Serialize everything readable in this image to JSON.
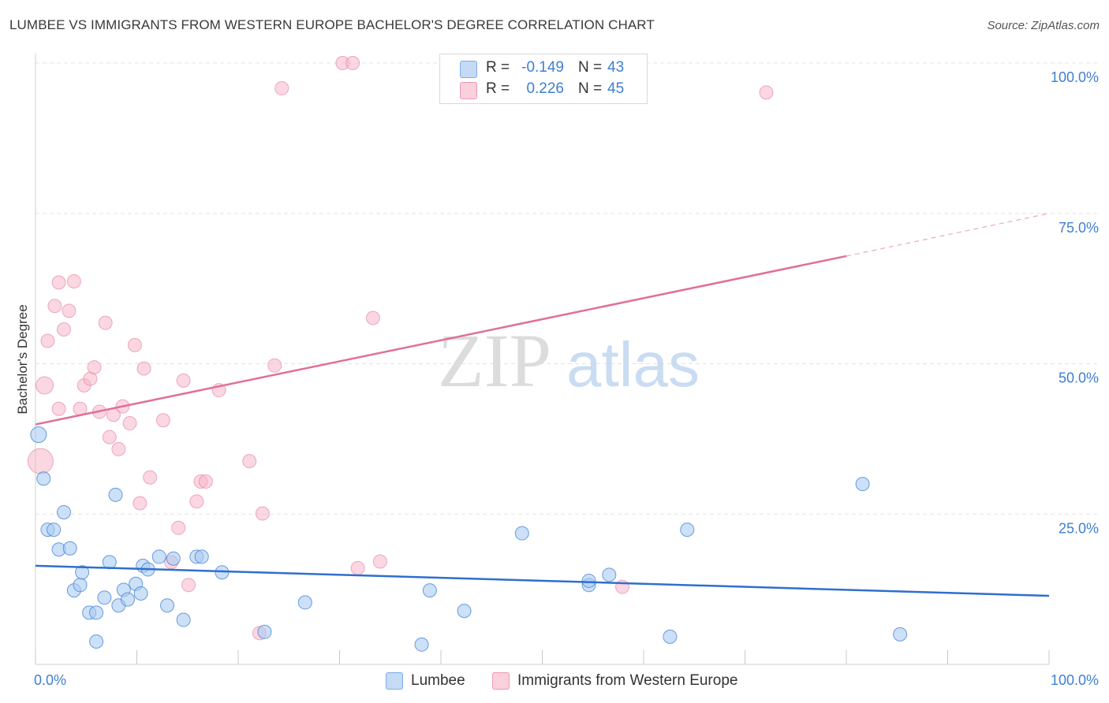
{
  "title": "LUMBEE VS IMMIGRANTS FROM WESTERN EUROPE BACHELOR'S DEGREE CORRELATION CHART",
  "source": "Source: ZipAtlas.com",
  "watermark": {
    "zip": "ZIP",
    "atlas": "atlas"
  },
  "colors": {
    "blue": "#3f7fd2",
    "blue_fill": "#aaccf3",
    "blue_line": "#2f6fcd",
    "pink": "#e06f96",
    "pink_fill": "#f5b6c9",
    "grid": "#e3e3e3"
  },
  "legend": {
    "rows": [
      {
        "r_label": "R =",
        "r_value": "-0.149",
        "n_label": "N =",
        "n_value": "43"
      },
      {
        "r_label": "R =",
        "r_value": "0.226",
        "n_label": "N =",
        "n_value": "45"
      }
    ]
  },
  "bottom_legend": {
    "series1": "Lumbee",
    "series2": "Immigrants from Western Europe"
  },
  "chart_data": {
    "type": "scatter",
    "title": "LUMBEE VS IMMIGRANTS FROM WESTERN EUROPE BACHELOR'S DEGREE CORRELATION CHART",
    "xlabel": "",
    "ylabel": "Bachelor's Degree",
    "xlim": [
      0,
      100
    ],
    "ylim": [
      0,
      100
    ],
    "x_tick_labels": [
      "0.0%",
      "100.0%"
    ],
    "y_tick_labels": [
      "100.0%",
      "75.0%",
      "50.0%",
      "25.0%"
    ],
    "y_ticks": [
      100,
      75,
      50,
      25
    ],
    "grid": true,
    "legend_position": "top-center",
    "series": [
      {
        "name": "Lumbee",
        "color": "#3f7fd2",
        "trend": {
          "x": [
            0,
            100
          ],
          "y": [
            16.4,
            11.4
          ]
        },
        "points": [
          [
            0.3,
            38.2
          ],
          [
            0.8,
            30.9
          ],
          [
            1.2,
            22.4
          ],
          [
            1.8,
            22.4
          ],
          [
            2.3,
            19.1
          ],
          [
            2.8,
            25.3
          ],
          [
            3.4,
            19.3
          ],
          [
            3.8,
            12.3
          ],
          [
            4.4,
            13.2
          ],
          [
            4.6,
            15.3
          ],
          [
            5.3,
            8.6
          ],
          [
            6.0,
            8.6
          ],
          [
            6.0,
            3.8
          ],
          [
            6.8,
            11.1
          ],
          [
            7.3,
            17.0
          ],
          [
            7.9,
            28.2
          ],
          [
            8.2,
            9.8
          ],
          [
            8.7,
            12.4
          ],
          [
            9.1,
            10.8
          ],
          [
            9.9,
            13.4
          ],
          [
            10.4,
            11.8
          ],
          [
            10.6,
            16.4
          ],
          [
            11.1,
            15.8
          ],
          [
            12.2,
            17.9
          ],
          [
            13.0,
            9.8
          ],
          [
            13.6,
            17.6
          ],
          [
            14.6,
            7.4
          ],
          [
            15.9,
            17.9
          ],
          [
            16.4,
            17.9
          ],
          [
            18.4,
            15.3
          ],
          [
            22.6,
            5.4
          ],
          [
            26.6,
            10.3
          ],
          [
            38.1,
            3.3
          ],
          [
            38.9,
            12.3
          ],
          [
            42.3,
            8.9
          ],
          [
            48.0,
            21.8
          ],
          [
            54.6,
            13.2
          ],
          [
            54.6,
            13.9
          ],
          [
            56.6,
            14.9
          ],
          [
            62.6,
            4.6
          ],
          [
            64.3,
            22.4
          ],
          [
            81.6,
            30.0
          ],
          [
            85.3,
            5.0
          ]
        ]
      },
      {
        "name": "Immigrants from Western Europe",
        "color": "#e06f96",
        "trend": {
          "x": [
            0,
            80
          ],
          "y": [
            39.9,
            67.9
          ]
        },
        "trend_dashed": {
          "x": [
            80,
            100
          ],
          "y": [
            67.9,
            75.0
          ]
        },
        "points": [
          [
            0.5,
            33.8
          ],
          [
            0.9,
            46.4
          ],
          [
            1.2,
            53.8
          ],
          [
            1.9,
            59.6
          ],
          [
            2.3,
            63.5
          ],
          [
            2.3,
            42.5
          ],
          [
            2.8,
            55.7
          ],
          [
            3.3,
            58.8
          ],
          [
            3.8,
            63.7
          ],
          [
            4.4,
            42.5
          ],
          [
            4.8,
            46.4
          ],
          [
            5.4,
            47.5
          ],
          [
            5.8,
            49.4
          ],
          [
            6.3,
            42.0
          ],
          [
            6.9,
            56.8
          ],
          [
            7.3,
            37.8
          ],
          [
            7.7,
            41.5
          ],
          [
            8.2,
            35.8
          ],
          [
            8.6,
            42.9
          ],
          [
            9.3,
            40.1
          ],
          [
            9.8,
            53.1
          ],
          [
            10.3,
            26.8
          ],
          [
            10.7,
            49.2
          ],
          [
            11.3,
            31.1
          ],
          [
            12.6,
            40.6
          ],
          [
            13.4,
            17.0
          ],
          [
            14.1,
            22.7
          ],
          [
            14.6,
            47.2
          ],
          [
            15.1,
            13.2
          ],
          [
            15.9,
            27.1
          ],
          [
            16.3,
            30.4
          ],
          [
            16.8,
            30.4
          ],
          [
            18.1,
            45.6
          ],
          [
            21.1,
            33.8
          ],
          [
            22.1,
            5.2
          ],
          [
            22.4,
            25.1
          ],
          [
            23.6,
            49.7
          ],
          [
            24.3,
            95.8
          ],
          [
            30.3,
            100
          ],
          [
            31.3,
            100
          ],
          [
            31.8,
            16.0
          ],
          [
            33.3,
            57.6
          ],
          [
            34.0,
            17.1
          ],
          [
            57.9,
            12.9
          ],
          [
            72.1,
            95.1
          ]
        ]
      }
    ]
  }
}
